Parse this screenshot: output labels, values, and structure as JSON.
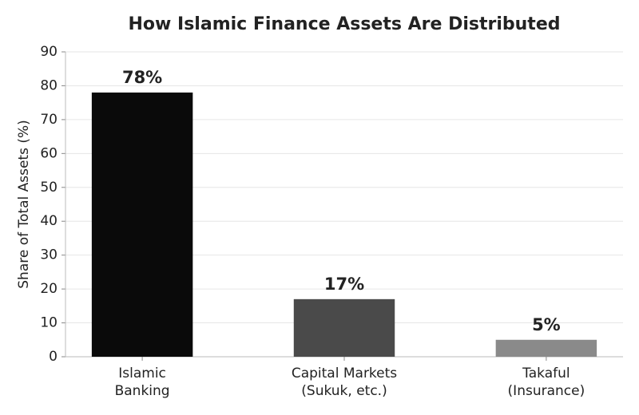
{
  "chart_data": {
    "type": "bar",
    "title": "How Islamic Finance Assets Are Distributed",
    "y_label": "Share of Total Assets (%)",
    "categories": [
      "Islamic\nBanking",
      "Capital Markets\n(Sukuk, etc.)",
      "Takaful\n(Insurance)"
    ],
    "values": [
      78,
      17,
      5
    ],
    "value_labels": [
      "78%",
      "17%",
      "5%"
    ],
    "colors": [
      "#0a0a0a",
      "#4a4a4a",
      "#8a8a8a"
    ],
    "ylim": [
      0,
      90
    ],
    "yticks": [
      0,
      10,
      20,
      30,
      40,
      50,
      60,
      70,
      80,
      90
    ],
    "grid": true
  }
}
